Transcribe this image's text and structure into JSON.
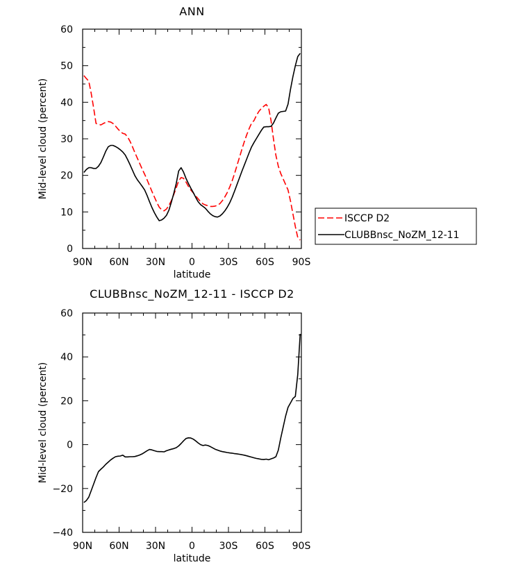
{
  "chart_data": [
    {
      "type": "line",
      "title": "ANN",
      "xlabel": "latitude",
      "ylabel": "Mid-level cloud (percent)",
      "xlim": [
        90,
        -90
      ],
      "ylim": [
        0,
        60
      ],
      "x_ticks": [
        90,
        60,
        30,
        0,
        -30,
        -60,
        -90
      ],
      "x_tick_labels": [
        "90N",
        "60N",
        "30N",
        "0",
        "30S",
        "60S",
        "90S"
      ],
      "y_ticks": [
        0,
        10,
        20,
        30,
        40,
        50,
        60
      ],
      "y_tick_labels": [
        "0",
        "10",
        "20",
        "30",
        "40",
        "50",
        "60"
      ],
      "legend_position": "right",
      "series": [
        {
          "name": "ISCCP D2",
          "color": "#ff0000",
          "dash": "dashed",
          "x": [
            89,
            87,
            85,
            83,
            81,
            79,
            77,
            75,
            73,
            71,
            69,
            67,
            65,
            63,
            61,
            59,
            57,
            55,
            53,
            51,
            49,
            47,
            45,
            43,
            41,
            39,
            37,
            35,
            33,
            31,
            29,
            27,
            25,
            23,
            21,
            19,
            17,
            15,
            13,
            11,
            9,
            7,
            5,
            3,
            1,
            -1,
            -3,
            -5,
            -7,
            -9,
            -11,
            -13,
            -15,
            -17,
            -19,
            -21,
            -23,
            -25,
            -27,
            -29,
            -31,
            -33,
            -35,
            -37,
            -39,
            -41,
            -43,
            -45,
            -47,
            -49,
            -51,
            -53,
            -55,
            -57,
            -59,
            -61,
            -63,
            -65,
            -67,
            -69,
            -71,
            -73,
            -75,
            -77,
            -79,
            -81,
            -83,
            -85,
            -87,
            -89
          ],
          "values": [
            47.3,
            46.5,
            45.8,
            42.5,
            38.5,
            34.2,
            34.0,
            33.8,
            34.2,
            34.5,
            34.7,
            34.6,
            34.2,
            33.5,
            32.7,
            32.0,
            31.5,
            31.3,
            30.5,
            29.3,
            27.8,
            26.2,
            24.7,
            23.2,
            21.7,
            20.3,
            18.8,
            17.2,
            15.6,
            14.1,
            12.6,
            11.3,
            10.6,
            10.3,
            10.8,
            11.8,
            13.1,
            14.8,
            16.6,
            18.5,
            19.4,
            19.2,
            18.2,
            17.0,
            16.0,
            15.2,
            14.4,
            13.6,
            12.8,
            12.2,
            11.9,
            11.7,
            11.5,
            11.5,
            11.6,
            11.8,
            12.3,
            13.1,
            14.1,
            15.3,
            16.8,
            18.5,
            20.5,
            22.7,
            24.9,
            27.1,
            29.2,
            31.1,
            32.8,
            34.3,
            35.0,
            36.4,
            37.5,
            38.3,
            38.9,
            39.4,
            38.5,
            35.0,
            30.0,
            25.5,
            22.5,
            20.5,
            19.0,
            17.5,
            16.0,
            13.0,
            9.5,
            6.0,
            3.0,
            2.3
          ]
        },
        {
          "name": "CLUBBnsc_NoZM_12-11",
          "color": "#000000",
          "dash": "solid",
          "x": [
            89,
            87,
            85,
            83,
            81,
            79,
            77,
            75,
            73,
            71,
            69,
            67,
            65,
            63,
            61,
            59,
            57,
            55,
            53,
            51,
            49,
            47,
            45,
            43,
            41,
            39,
            37,
            35,
            33,
            31,
            29,
            27,
            25,
            23,
            21,
            19,
            17,
            15,
            13,
            11,
            9,
            7,
            5,
            3,
            1,
            -1,
            -3,
            -5,
            -7,
            -9,
            -11,
            -13,
            -15,
            -17,
            -19,
            -21,
            -23,
            -25,
            -27,
            -29,
            -31,
            -33,
            -35,
            -37,
            -39,
            -41,
            -43,
            -45,
            -47,
            -49,
            -51,
            -53,
            -55,
            -57,
            -59,
            -61,
            -63,
            -65,
            -67,
            -69,
            -71,
            -73,
            -75,
            -77,
            -79,
            -81,
            -83,
            -85,
            -87,
            -89
          ],
          "values": [
            20.8,
            21.6,
            22.1,
            22.1,
            21.9,
            21.9,
            22.5,
            23.5,
            25.0,
            26.6,
            27.8,
            28.2,
            28.2,
            27.9,
            27.5,
            27.0,
            26.4,
            25.6,
            24.3,
            22.9,
            21.4,
            19.9,
            18.8,
            17.9,
            17.0,
            16.0,
            14.5,
            12.8,
            11.2,
            9.8,
            8.6,
            7.6,
            7.8,
            8.3,
            9.1,
            10.5,
            12.7,
            15.1,
            17.8,
            21.2,
            22.1,
            20.9,
            19.2,
            17.8,
            16.5,
            15.3,
            14.0,
            12.8,
            12.0,
            11.5,
            11.0,
            10.2,
            9.5,
            9.0,
            8.7,
            8.6,
            8.9,
            9.5,
            10.3,
            11.3,
            12.5,
            14.0,
            15.7,
            17.5,
            19.3,
            21.1,
            22.8,
            24.5,
            26.2,
            27.8,
            29.0,
            30.1,
            31.2,
            32.3,
            33.2,
            33.3,
            33.3,
            33.4,
            34.3,
            35.7,
            37.0,
            37.4,
            37.5,
            37.6,
            39.5,
            43.5,
            47.0,
            50.0,
            52.5,
            53.4
          ]
        }
      ]
    },
    {
      "type": "line",
      "title": "CLUBBnsc_NoZM_12-11 - ISCCP D2",
      "xlabel": "latitude",
      "ylabel": "Mid-level cloud (percent)",
      "xlim": [
        90,
        -90
      ],
      "ylim": [
        -40,
        60
      ],
      "x_ticks": [
        90,
        60,
        30,
        0,
        -30,
        -60,
        -90
      ],
      "x_tick_labels": [
        "90N",
        "60N",
        "30N",
        "0",
        "30S",
        "60S",
        "90S"
      ],
      "y_ticks": [
        -40,
        -20,
        0,
        20,
        40,
        60
      ],
      "y_tick_labels": [
        "−40",
        "−20",
        "0",
        "20",
        "40",
        "60"
      ],
      "series": [
        {
          "color": "#000000",
          "dash": "solid",
          "x": [
            89,
            87,
            85,
            83,
            81,
            79,
            77,
            75,
            73,
            71,
            69,
            67,
            65,
            63,
            61,
            59,
            57,
            55,
            53,
            51,
            49,
            47,
            45,
            43,
            41,
            39,
            37,
            35,
            33,
            31,
            29,
            27,
            25,
            23,
            21,
            19,
            17,
            15,
            13,
            11,
            9,
            7,
            5,
            3,
            1,
            -1,
            -3,
            -5,
            -7,
            -9,
            -11,
            -13,
            -15,
            -17,
            -19,
            -21,
            -23,
            -25,
            -27,
            -29,
            -31,
            -33,
            -35,
            -37,
            -39,
            -41,
            -43,
            -45,
            -47,
            -49,
            -51,
            -53,
            -55,
            -57,
            -59,
            -61,
            -63,
            -65,
            -67,
            -69,
            -71,
            -73,
            -75,
            -77,
            -79,
            -81,
            -83,
            -85,
            -87,
            -89
          ],
          "values": [
            -26.4,
            -25.5,
            -24.0,
            -21.0,
            -18.0,
            -15.0,
            -12.3,
            -11.2,
            -10.2,
            -9.0,
            -8.0,
            -7.0,
            -6.2,
            -5.5,
            -5.3,
            -5.2,
            -4.8,
            -5.6,
            -5.6,
            -5.5,
            -5.5,
            -5.4,
            -5.1,
            -4.7,
            -4.2,
            -3.5,
            -2.8,
            -2.2,
            -2.4,
            -2.8,
            -3.1,
            -3.2,
            -3.2,
            -3.3,
            -2.8,
            -2.4,
            -2.1,
            -1.8,
            -1.4,
            -0.6,
            0.5,
            1.7,
            2.8,
            3.1,
            3.0,
            2.5,
            1.7,
            0.8,
            0.0,
            -0.4,
            -0.2,
            -0.4,
            -0.9,
            -1.5,
            -2.1,
            -2.5,
            -2.9,
            -3.2,
            -3.4,
            -3.6,
            -3.8,
            -3.9,
            -4.1,
            -4.2,
            -4.4,
            -4.6,
            -4.8,
            -5.1,
            -5.4,
            -5.7,
            -6.0,
            -6.3,
            -6.5,
            -6.7,
            -6.8,
            -6.6,
            -6.9,
            -6.5,
            -6.1,
            -5.5,
            -2.5,
            3.0,
            8.0,
            13.0,
            17.0,
            19.0,
            21.0,
            22.0,
            32.0,
            50.5
          ]
        }
      ]
    }
  ]
}
